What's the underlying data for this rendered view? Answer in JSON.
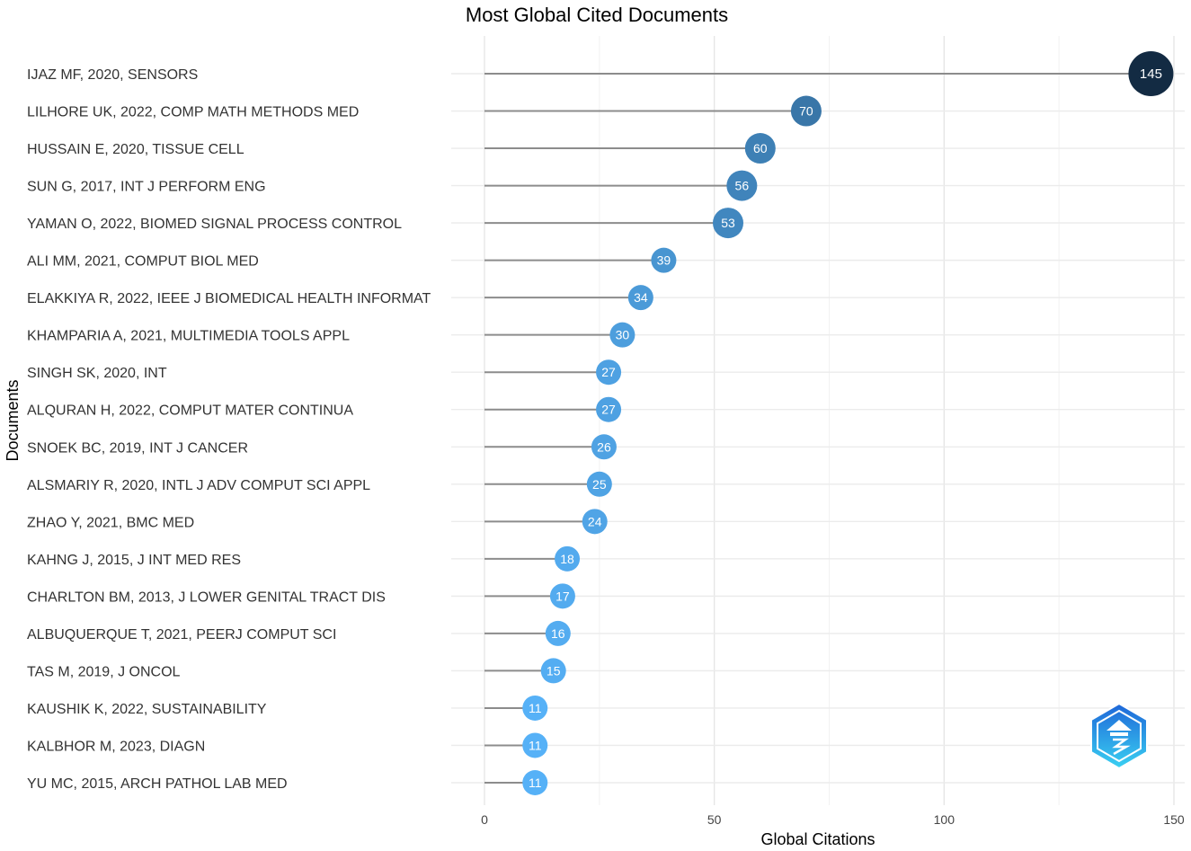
{
  "chart_data": {
    "type": "lollipop",
    "title": "Most Global Cited Documents",
    "xlabel": "Global Citations",
    "ylabel": "Documents",
    "xlim": [
      0,
      150
    ],
    "xticks": [
      0,
      50,
      100,
      150
    ],
    "grid": true,
    "categories": [
      "IJAZ MF, 2020, SENSORS",
      "LILHORE UK, 2022, COMP MATH METHODS MED",
      "HUSSAIN E, 2020, TISSUE CELL",
      "SUN G, 2017, INT J PERFORM ENG",
      "YAMAN O, 2022, BIOMED SIGNAL PROCESS CONTROL",
      "ALI MM, 2021, COMPUT BIOL MED",
      "ELAKKIYA R, 2022, IEEE J BIOMEDICAL HEALTH INFORMAT",
      "KHAMPARIA A, 2021, MULTIMEDIA TOOLS APPL",
      "SINGH SK, 2020, INT",
      "ALQURAN H, 2022, COMPUT MATER CONTINUA",
      "SNOEK BC, 2019, INT J CANCER",
      "ALSMARIY R, 2020, INTL J ADV COMPUT SCI APPL",
      "ZHAO Y, 2021, BMC MED",
      "KAHNG J, 2015, J INT MED RES",
      "CHARLTON BM, 2013, J LOWER GENITAL TRACT DIS",
      "ALBUQUERQUE T, 2021, PEERJ COMPUT SCI",
      "TAS M, 2019, J ONCOL",
      "KAUSHIK K, 2022, SUSTAINABILITY",
      "KALBHOR M, 2023, DIAGN",
      "YU MC, 2015, ARCH PATHOL LAB MED"
    ],
    "values": [
      145,
      70,
      60,
      56,
      53,
      39,
      34,
      30,
      27,
      27,
      26,
      25,
      24,
      18,
      17,
      16,
      15,
      11,
      11,
      11
    ],
    "color_scale": {
      "low": "#56b1f7",
      "high": "#132b43"
    }
  }
}
